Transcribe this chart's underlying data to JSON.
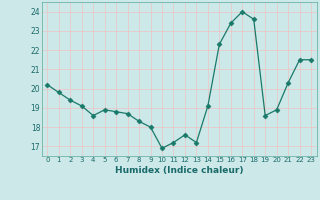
{
  "x": [
    0,
    1,
    2,
    3,
    4,
    5,
    6,
    7,
    8,
    9,
    10,
    11,
    12,
    13,
    14,
    15,
    16,
    17,
    18,
    19,
    20,
    21,
    22,
    23
  ],
  "y": [
    20.2,
    19.8,
    19.4,
    19.1,
    18.6,
    18.9,
    18.8,
    18.7,
    18.3,
    18.0,
    16.9,
    17.2,
    17.6,
    17.2,
    19.1,
    22.3,
    23.4,
    24.0,
    23.6,
    18.6,
    18.9,
    20.3,
    21.5,
    21.5
  ],
  "xlabel": "Humidex (Indice chaleur)",
  "xlim": [
    -0.5,
    23.5
  ],
  "ylim": [
    16.5,
    24.5
  ],
  "yticks": [
    17,
    18,
    19,
    20,
    21,
    22,
    23,
    24
  ],
  "xticks": [
    0,
    1,
    2,
    3,
    4,
    5,
    6,
    7,
    8,
    9,
    10,
    11,
    12,
    13,
    14,
    15,
    16,
    17,
    18,
    19,
    20,
    21,
    22,
    23
  ],
  "line_color": "#1a7a6a",
  "marker_color": "#1a7a6a",
  "bg_color": "#cce8e8",
  "grid_color": "#e8c8c8",
  "axes_bg": "#cce8e8"
}
